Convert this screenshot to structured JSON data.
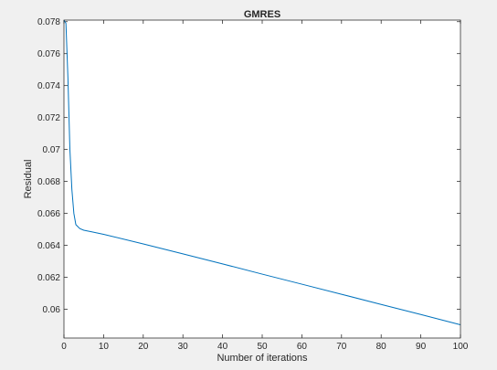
{
  "chart_data": {
    "type": "line",
    "title": "GMRES",
    "xlabel": "Number of iterations",
    "ylabel": "Residual",
    "xlim": [
      0,
      100
    ],
    "ylim": [
      0.0582,
      0.0781
    ],
    "x_ticks": [
      0,
      10,
      20,
      30,
      40,
      50,
      60,
      70,
      80,
      90,
      100
    ],
    "y_ticks": [
      0.06,
      0.062,
      0.064,
      0.066,
      0.068,
      0.07,
      0.072,
      0.074,
      0.076,
      0.078
    ],
    "x_tick_labels": [
      "0",
      "10",
      "20",
      "30",
      "40",
      "50",
      "60",
      "70",
      "80",
      "90",
      "100"
    ],
    "y_tick_labels": [
      "0.06",
      "0.062",
      "0.064",
      "0.066",
      "0.068",
      "0.07",
      "0.072",
      "0.074",
      "0.076",
      "0.078"
    ],
    "grid": false,
    "line_color": "#0072bd",
    "series": [
      {
        "x": [
          0,
          0.5,
          1,
          1.5,
          2,
          2.5,
          3,
          4,
          5,
          7,
          10,
          20,
          30,
          40,
          50,
          60,
          70,
          80,
          90,
          100
        ],
        "values": [
          0.0781,
          0.0779,
          0.0745,
          0.07,
          0.0675,
          0.066,
          0.0653,
          0.06505,
          0.06495,
          0.06485,
          0.06469,
          0.06409,
          0.06347,
          0.06284,
          0.0622,
          0.06157,
          0.06094,
          0.0603,
          0.05967,
          0.05903
        ]
      }
    ]
  }
}
